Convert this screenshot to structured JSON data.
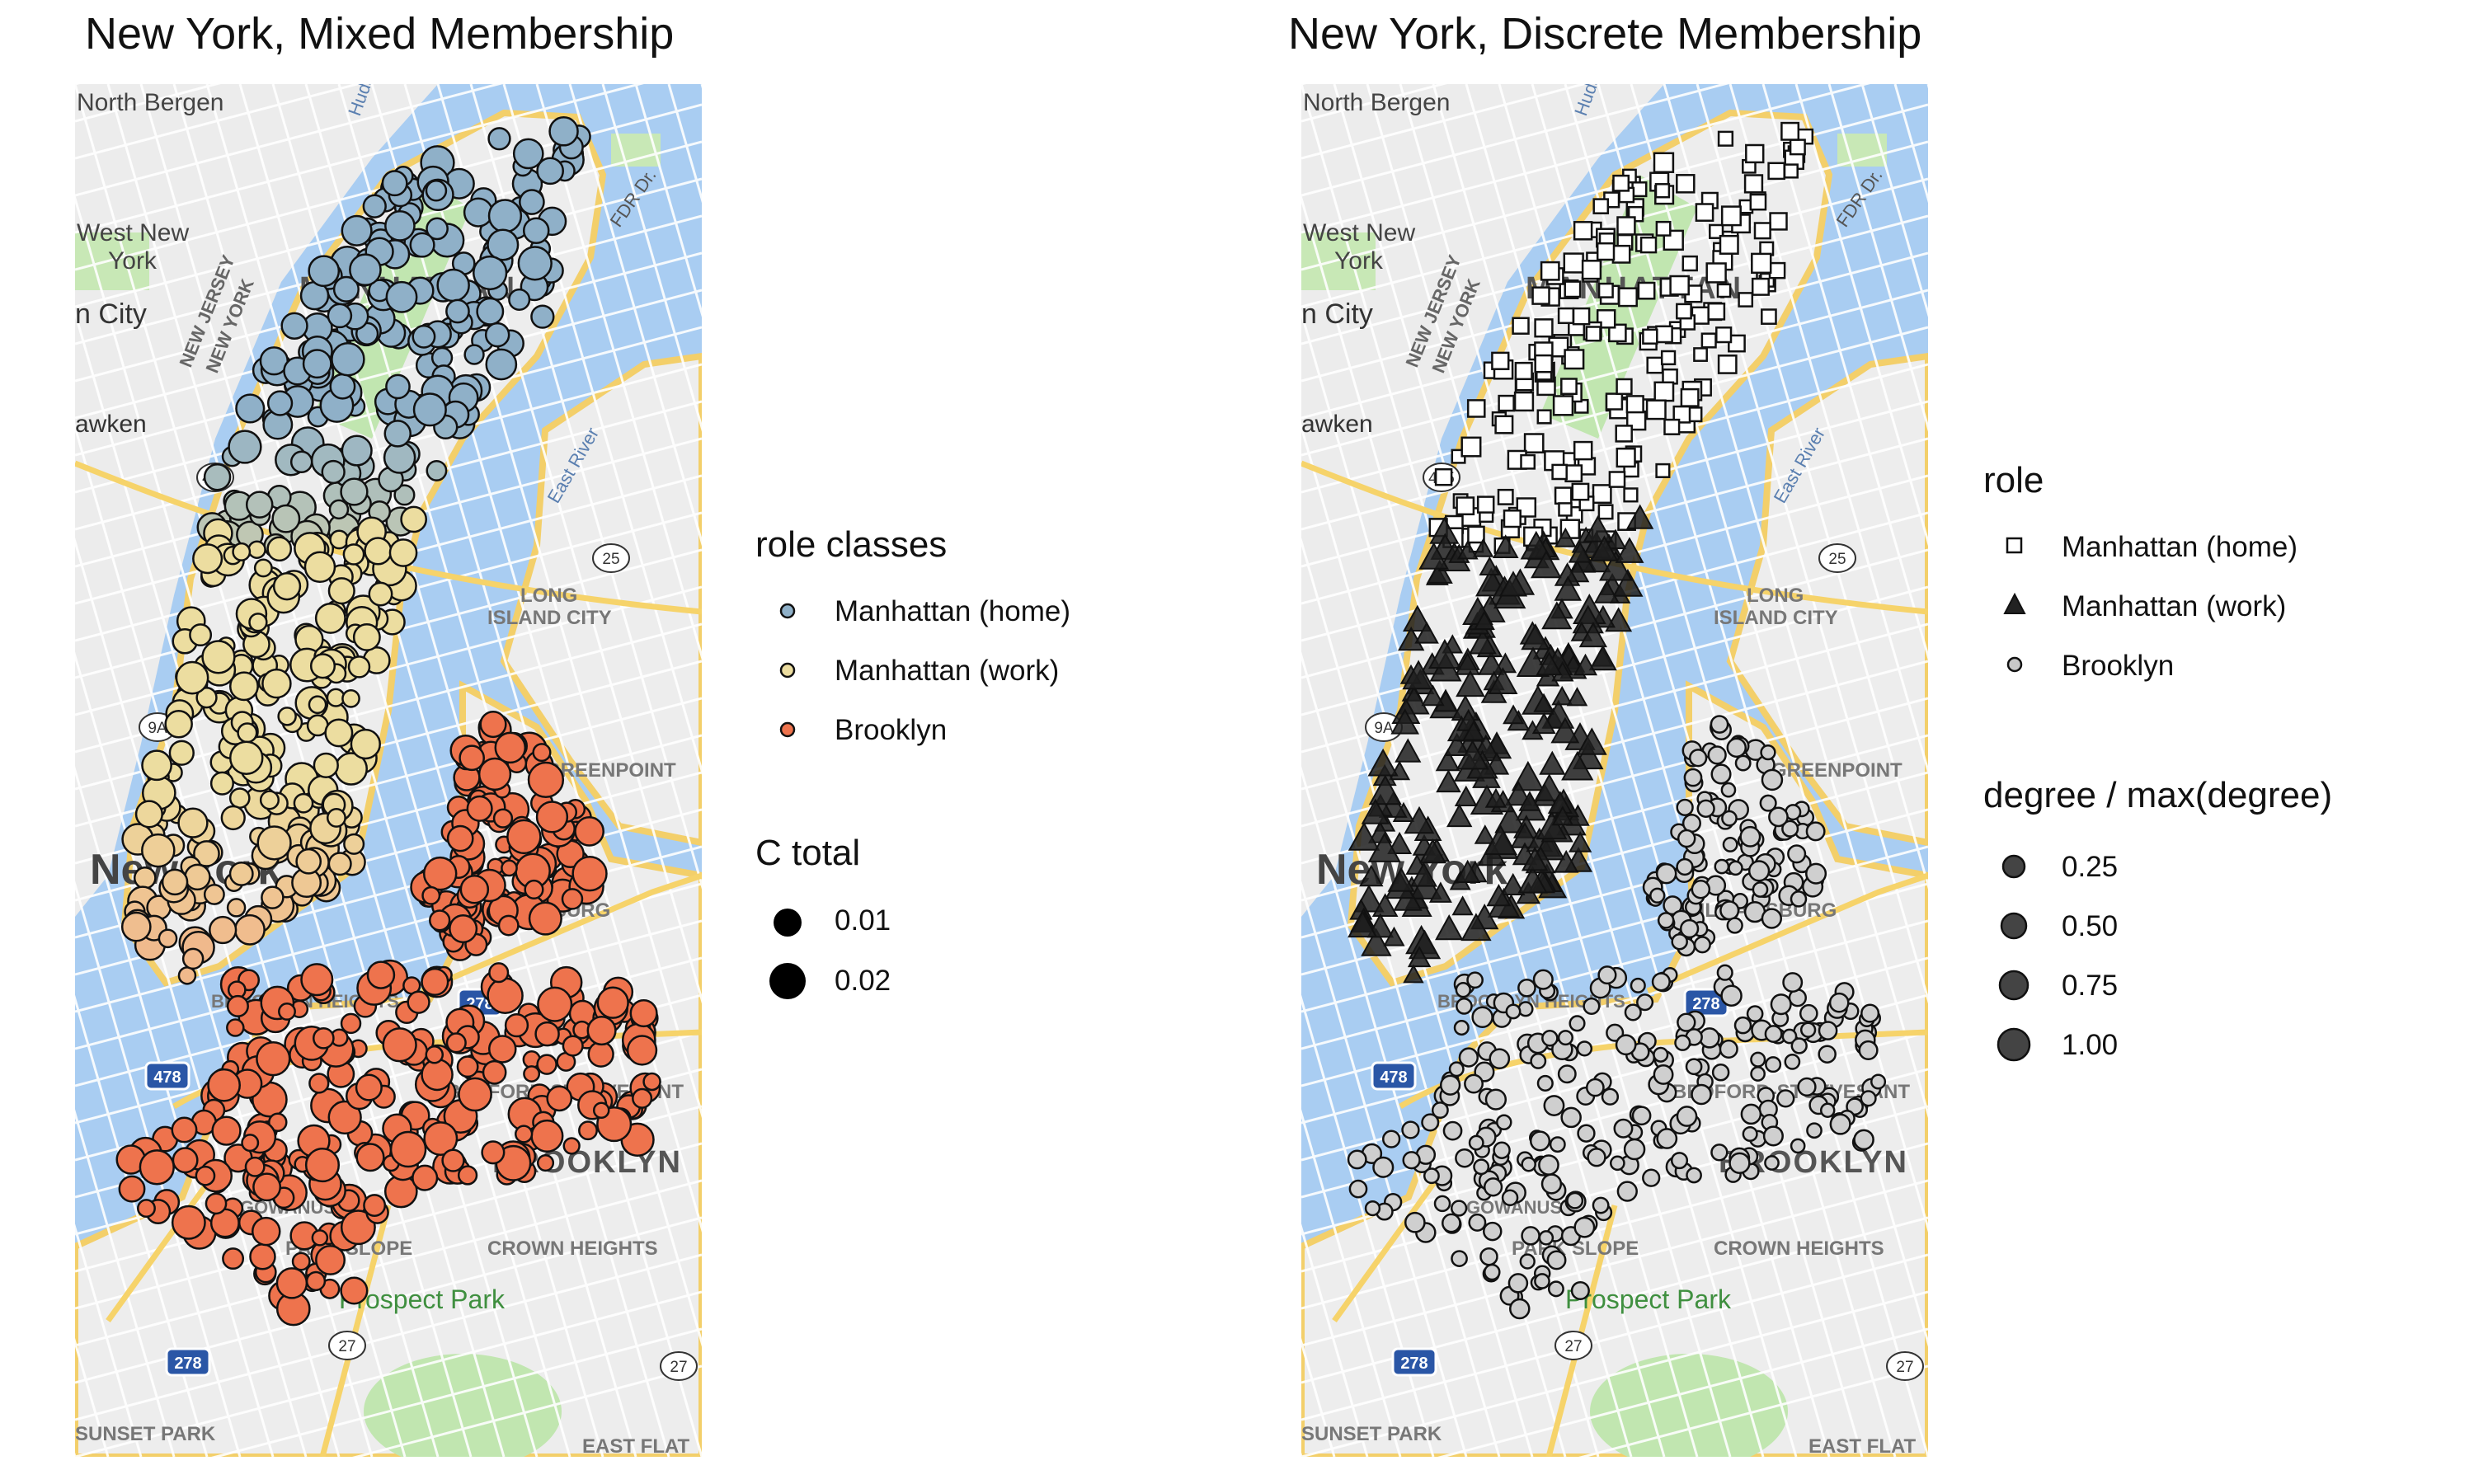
{
  "left_panel": {
    "title": "New York, Mixed Membership",
    "legend_role": {
      "title": "role classes",
      "items": [
        {
          "label": "Manhattan (home)",
          "color": "#8fb0c8"
        },
        {
          "label": "Manhattan (work)",
          "color": "#ecdda0"
        },
        {
          "label": "Brooklyn",
          "color": "#ee734d"
        }
      ]
    },
    "legend_size": {
      "title": "C total",
      "items": [
        {
          "label": "0.01"
        },
        {
          "label": "0.02"
        }
      ]
    }
  },
  "right_panel": {
    "title": "New York, Discrete Membership",
    "legend_role": {
      "title": "role",
      "items": [
        {
          "label": "Manhattan (home)",
          "shape": "square"
        },
        {
          "label": "Manhattan (work)",
          "shape": "triangle"
        },
        {
          "label": "Brooklyn",
          "shape": "circle"
        }
      ]
    },
    "legend_size": {
      "title": "degree / max(degree)",
      "items": [
        {
          "label": "0.25"
        },
        {
          "label": "0.50"
        },
        {
          "label": "0.75"
        },
        {
          "label": "1.00"
        }
      ]
    }
  },
  "map_labels": {
    "north_bergen": "North Bergen",
    "west_new_york_1": "West New",
    "west_new_york_2": "York",
    "union_city": "n City",
    "weehawken": "awken",
    "manhattan": "MANHATTAN",
    "new_jersey": "NEW JERSEY",
    "new_york_state": "NEW YORK",
    "east_river": "East River",
    "fdr": "FDR Dr.",
    "hudson": "Hudson",
    "long_island_city_1": "LONG",
    "long_island_city_2": "ISLAND CITY",
    "greenpoint": "GREENPOINT",
    "williamsburg": "WILLIAMSBURG",
    "new_york": "New York",
    "brooklyn_heights": "BROOKLYN HEIGHTS",
    "bedford": "BEDFORD-STUYVESANT",
    "brooklyn": "BROOKLYN",
    "gowanus": "GOWANUS",
    "park_slope": "PARK SLOPE",
    "crown_heights": "CROWN HEIGHTS",
    "prospect_park": "Prospect Park",
    "sunset_park": "SUNSET PARK",
    "east_flatbush": "EAST FLAT",
    "highway_495": "495",
    "highway_278": "278",
    "highway_478": "478",
    "highway_25": "25",
    "highway_27": "27",
    "highway_9a": "9A"
  }
}
